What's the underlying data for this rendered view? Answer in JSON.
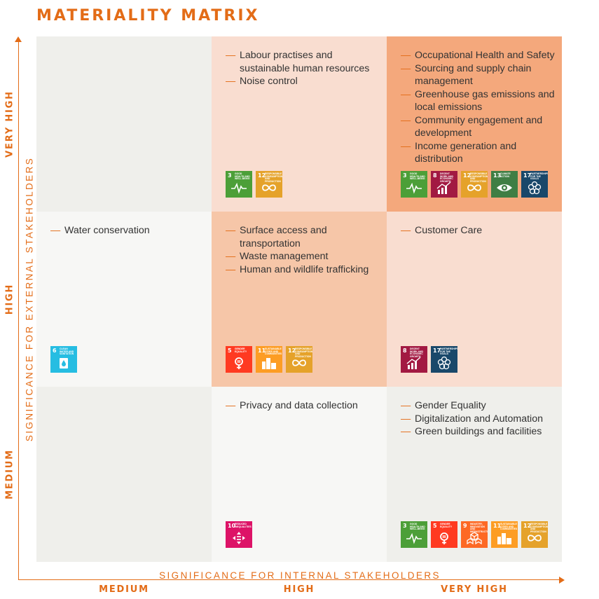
{
  "title": "MATERIALITY MATRIX",
  "chart_data": {
    "type": "table",
    "xlabel": "SIGNIFICANCE FOR INTERNAL STAKEHOLDERS",
    "ylabel": "SIGNIFICANCE FOR EXTERNAL STAKEHOLDERS",
    "x_levels": [
      "MEDIUM",
      "HIGH",
      "VERY HIGH"
    ],
    "y_levels": [
      "VERY HIGH",
      "HIGH",
      "MEDIUM"
    ],
    "cells": [
      {
        "internal": "MEDIUM",
        "external": "VERY HIGH",
        "color": "#efefeb",
        "issues": [],
        "sdgs": []
      },
      {
        "internal": "HIGH",
        "external": "VERY HIGH",
        "color": "#f9ddd0",
        "issues": [
          "Labour practises and sustainable human resources",
          "Noise control"
        ],
        "sdgs": [
          {
            "num": "3",
            "label": "Good health and well-being",
            "icon": "heartbeat-icon",
            "color": "#4c9f38"
          },
          {
            "num": "12",
            "label": "Responsible consumption and production",
            "icon": "infinity-icon",
            "color": "#e5a22a"
          }
        ]
      },
      {
        "internal": "VERY HIGH",
        "external": "VERY HIGH",
        "color": "#f4a87c",
        "issues": [
          "Occupational Health and Safety",
          "Sourcing and supply chain management",
          "Greenhouse gas emissions and local emissions",
          "Community engagement and development",
          "Income generation and distribution"
        ],
        "sdgs": [
          {
            "num": "3",
            "label": "Good health and well-being",
            "icon": "heartbeat-icon",
            "color": "#4c9f38"
          },
          {
            "num": "8",
            "label": "Decent work and economic growth",
            "icon": "growth-chart-icon",
            "color": "#a21942"
          },
          {
            "num": "12",
            "label": "Responsible consumption and production",
            "icon": "infinity-icon",
            "color": "#e5a22a"
          },
          {
            "num": "13",
            "label": "Climate action",
            "icon": "eye-globe-icon",
            "color": "#3f7e44"
          },
          {
            "num": "17",
            "label": "Partnerships for the goals",
            "icon": "flower-icon",
            "color": "#19486a"
          }
        ]
      },
      {
        "internal": "MEDIUM",
        "external": "HIGH",
        "color": "#f7f7f5",
        "issues": [
          "Water conservation"
        ],
        "sdgs": [
          {
            "num": "6",
            "label": "Clean water and sanitation",
            "icon": "water-drop-icon",
            "color": "#26bde2"
          }
        ]
      },
      {
        "internal": "HIGH",
        "external": "HIGH",
        "color": "#f6c6a8",
        "issues": [
          "Surface access and transportation",
          "Waste management",
          "Human and wildlife trafficking"
        ],
        "sdgs": [
          {
            "num": "5",
            "label": "Gender equality",
            "icon": "gender-icon",
            "color": "#ff3a21"
          },
          {
            "num": "11",
            "label": "Sustainable cities and communities",
            "icon": "city-icon",
            "color": "#fd9d24"
          },
          {
            "num": "12",
            "label": "Responsible consumption and production",
            "icon": "infinity-icon",
            "color": "#e5a22a"
          }
        ]
      },
      {
        "internal": "VERY HIGH",
        "external": "HIGH",
        "color": "#f9ddd0",
        "issues": [
          "Customer Care"
        ],
        "sdgs": [
          {
            "num": "8",
            "label": "Decent work and economic growth",
            "icon": "growth-chart-icon",
            "color": "#a21942"
          },
          {
            "num": "17",
            "label": "Partnerships for the goals",
            "icon": "flower-icon",
            "color": "#19486a"
          }
        ]
      },
      {
        "internal": "MEDIUM",
        "external": "MEDIUM",
        "color": "#efefeb",
        "issues": [],
        "sdgs": []
      },
      {
        "internal": "HIGH",
        "external": "MEDIUM",
        "color": "#f7f7f5",
        "issues": [
          "Privacy and data collection"
        ],
        "sdgs": [
          {
            "num": "10",
            "label": "Reduced inequalities",
            "icon": "equality-arrows-icon",
            "color": "#dd1367"
          }
        ]
      },
      {
        "internal": "VERY HIGH",
        "external": "MEDIUM",
        "color": "#efefeb",
        "issues": [
          "Gender Equality",
          "Digitalization and Automation",
          "Green buildings and facilities"
        ],
        "sdgs": [
          {
            "num": "3",
            "label": "Good health and well-being",
            "icon": "heartbeat-icon",
            "color": "#4c9f38"
          },
          {
            "num": "5",
            "label": "Gender equality",
            "icon": "gender-icon",
            "color": "#ff3a21"
          },
          {
            "num": "9",
            "label": "Industry, innovation and infrastructure",
            "icon": "cubes-icon",
            "color": "#fd6925"
          },
          {
            "num": "11",
            "label": "Sustainable cities and communities",
            "icon": "city-icon",
            "color": "#fd9d24"
          },
          {
            "num": "12",
            "label": "Responsible consumption and production",
            "icon": "infinity-icon",
            "color": "#e5a22a"
          }
        ]
      }
    ]
  }
}
